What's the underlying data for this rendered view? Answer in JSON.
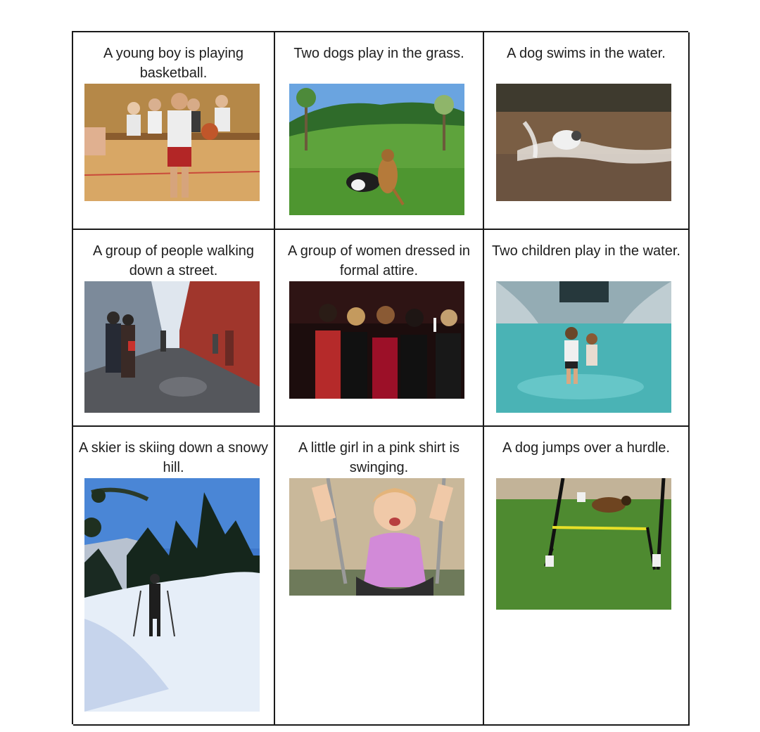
{
  "cards": [
    {
      "caption": "A young boy is playing basketball.",
      "image": "boy-basketball-photo"
    },
    {
      "caption": "Two dogs play in the grass.",
      "image": "dogs-grass-photo"
    },
    {
      "caption": "A dog swims in the water.",
      "image": "dog-swimming-photo"
    },
    {
      "caption": "A group of people walking down a street.",
      "image": "street-walkers-photo"
    },
    {
      "caption": "A group of women dressed in formal attire.",
      "image": "formal-women-photo"
    },
    {
      "caption": "Two children play in the water.",
      "image": "children-water-photo"
    },
    {
      "caption": "A skier is skiing down a snowy hill.",
      "image": "skier-snow-photo"
    },
    {
      "caption": "A little girl in a pink shirt is swinging.",
      "image": "girl-swing-photo"
    },
    {
      "caption": "A dog jumps over a hurdle.",
      "image": "dog-hurdle-photo"
    }
  ]
}
